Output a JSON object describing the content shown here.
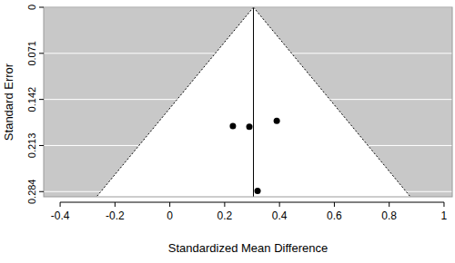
{
  "chart_data": {
    "type": "funnel",
    "x_label": "Standardized Mean Difference",
    "y_label": "Standard Error",
    "x": [
      0.23,
      0.29,
      0.39,
      0.32
    ],
    "values": [
      0.183,
      0.184,
      0.175,
      0.283
    ],
    "summary_estimate": 0.305,
    "color": "#000000",
    "xlim": [
      -0.46,
      1.03
    ],
    "ylim": [
      0,
      0.292
    ],
    "xticks": [
      -0.4,
      -0.2,
      0,
      0.2,
      0.4,
      0.6,
      0.8,
      1
    ],
    "yticks": [
      0,
      0.071,
      0.142,
      0.213,
      0.284
    ],
    "grid": true
  }
}
